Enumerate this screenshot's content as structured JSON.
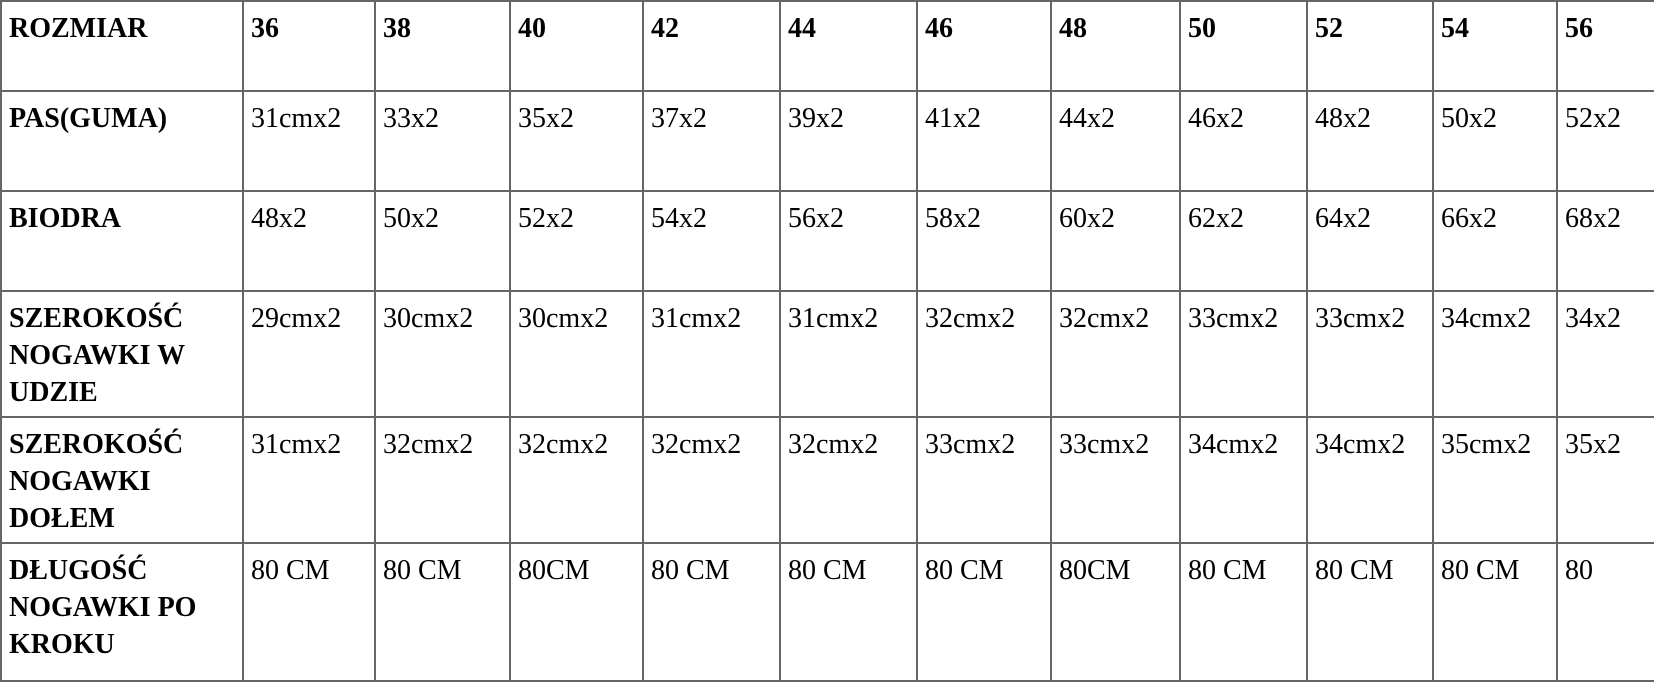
{
  "table": {
    "header": [
      "ROZMIAR",
      "36",
      "38",
      "40",
      "42",
      "44",
      "46",
      "48",
      "50",
      "52",
      "54",
      "56"
    ],
    "rows": [
      {
        "label": "PAS(GUMA)",
        "values": [
          "31cmx2",
          "33x2",
          "35x2",
          "37x2",
          "39x2",
          "41x2",
          "44x2",
          "46x2",
          "48x2",
          "50x2",
          "52x2"
        ]
      },
      {
        "label": "BIODRA",
        "values": [
          "48x2",
          "50x2",
          "52x2",
          "54x2",
          "56x2",
          "58x2",
          "60x2",
          "62x2",
          "64x2",
          "66x2",
          "68x2"
        ]
      },
      {
        "label": "SZEROKOŚĆ NOGAWKI W UDZIE",
        "values": [
          "29cmx2",
          "30cmx2",
          "30cmx2",
          "31cmx2",
          "31cmx2",
          "32cmx2",
          "32cmx2",
          "33cmx2",
          "33cmx2",
          "34cmx2",
          "34x2"
        ]
      },
      {
        "label": "SZEROKOŚĆ NOGAWKI DOŁEM",
        "values": [
          "31cmx2",
          "32cmx2",
          "32cmx2",
          "32cmx2",
          "32cmx2",
          "33cmx2",
          "33cmx2",
          "34cmx2",
          "34cmx2",
          "35cmx2",
          "35x2"
        ]
      },
      {
        "label": "DŁUGOŚĆ NOGAWKI PO KROKU",
        "values": [
          "80 CM",
          "80 CM",
          "80CM",
          "80 CM",
          "80 CM",
          "80 CM",
          "80CM",
          "80 CM",
          "80 CM",
          "80 CM",
          "80"
        ]
      }
    ]
  }
}
